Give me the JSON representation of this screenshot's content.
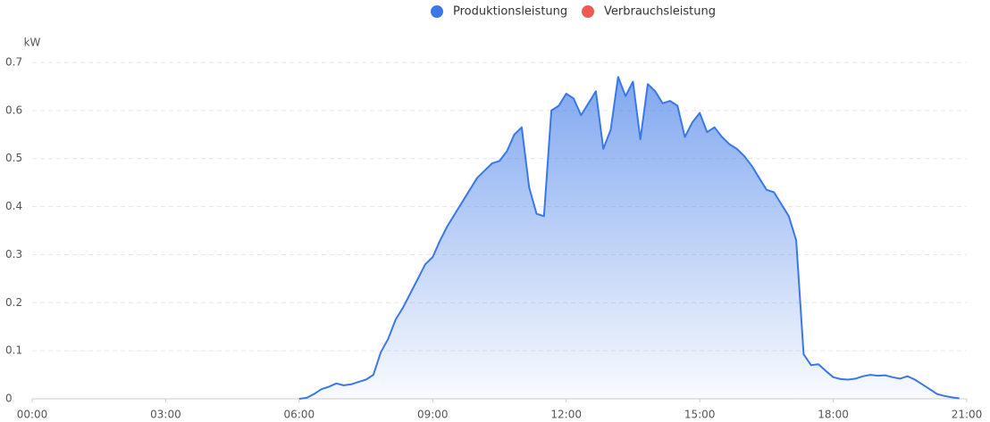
{
  "chart_data": {
    "type": "area",
    "y_label": "kW",
    "x": [
      360,
      370,
      380,
      390,
      400,
      410,
      420,
      430,
      440,
      450,
      460,
      470,
      480,
      490,
      500,
      510,
      520,
      530,
      540,
      550,
      560,
      570,
      580,
      590,
      600,
      610,
      620,
      630,
      640,
      650,
      660,
      670,
      680,
      690,
      700,
      710,
      720,
      730,
      740,
      750,
      760,
      770,
      780,
      790,
      800,
      810,
      820,
      830,
      840,
      850,
      860,
      870,
      880,
      890,
      900,
      910,
      920,
      930,
      940,
      950,
      960,
      970,
      980,
      990,
      1000,
      1010,
      1020,
      1030,
      1040,
      1050,
      1060,
      1070,
      1080,
      1090,
      1100,
      1110,
      1120,
      1130,
      1140,
      1150,
      1160,
      1170,
      1180,
      1190,
      1200,
      1210,
      1220,
      1230,
      1240,
      1250
    ],
    "series": [
      {
        "name": "Produktionsleistung",
        "color": "#3b78e7",
        "values": [
          0,
          0.002,
          0.01,
          0.02,
          0.025,
          0.032,
          0.028,
          0.03,
          0.035,
          0.04,
          0.05,
          0.097,
          0.125,
          0.165,
          0.19,
          0.22,
          0.25,
          0.28,
          0.295,
          0.33,
          0.36,
          0.385,
          0.41,
          0.435,
          0.46,
          0.475,
          0.49,
          0.495,
          0.515,
          0.55,
          0.565,
          0.44,
          0.385,
          0.38,
          0.6,
          0.61,
          0.635,
          0.625,
          0.59,
          0.615,
          0.64,
          0.52,
          0.56,
          0.67,
          0.63,
          0.66,
          0.54,
          0.655,
          0.64,
          0.615,
          0.62,
          0.61,
          0.545,
          0.575,
          0.595,
          0.555,
          0.565,
          0.545,
          0.53,
          0.52,
          0.505,
          0.485,
          0.46,
          0.435,
          0.43,
          0.405,
          0.38,
          0.33,
          0.093,
          0.07,
          0.072,
          0.058,
          0.045,
          0.041,
          0.04,
          0.042,
          0.047,
          0.05,
          0.048,
          0.049,
          0.045,
          0.042,
          0.047,
          0.04,
          0.03,
          0.02,
          0.01,
          0.006,
          0.003,
          0.001
        ]
      },
      {
        "name": "Verbrauchsleistung",
        "color": "#ee5a52",
        "values": [
          null,
          null,
          null,
          null,
          null,
          null,
          null,
          null,
          null,
          null,
          null,
          null,
          null,
          null,
          null,
          null,
          null,
          null,
          null,
          null,
          null,
          null,
          null,
          null,
          null,
          null,
          null,
          null,
          null,
          null,
          null,
          null,
          null,
          null,
          null,
          null,
          null,
          null,
          null,
          null,
          null,
          null,
          null,
          null,
          null,
          null,
          null,
          null,
          null,
          null,
          null,
          null,
          null,
          null,
          null,
          null,
          null,
          null,
          null,
          null,
          null,
          null,
          null,
          null,
          null,
          null,
          null,
          null,
          null,
          null,
          null,
          null,
          null,
          null,
          null,
          null,
          null,
          null,
          null,
          null,
          null,
          null,
          null,
          null,
          null,
          null,
          null,
          null,
          null,
          null
        ]
      }
    ],
    "xlim": [
      0,
      1260
    ],
    "xticks": [
      {
        "value": 0,
        "label": "00:00"
      },
      {
        "value": 180,
        "label": "03:00"
      },
      {
        "value": 360,
        "label": "06:00"
      },
      {
        "value": 540,
        "label": "09:00"
      },
      {
        "value": 720,
        "label": "12:00"
      },
      {
        "value": 900,
        "label": "15:00"
      },
      {
        "value": 1080,
        "label": "18:00"
      },
      {
        "value": 1260,
        "label": "21:00"
      }
    ],
    "ylim": [
      0,
      0.7
    ],
    "yticks": [
      0,
      0.1,
      0.2,
      0.3,
      0.4,
      0.5,
      0.6,
      0.7
    ],
    "grid": true
  }
}
